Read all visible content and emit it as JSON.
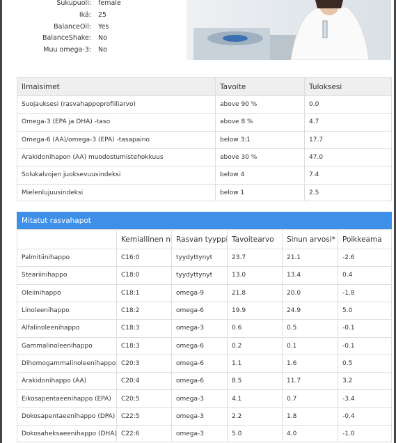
{
  "profile": [
    [
      "Sukupuoli:",
      "female"
    ],
    [
      "Ikä:",
      "25"
    ],
    [
      "BalanceOil:",
      "Yes"
    ],
    [
      "BalanceShake:",
      "No"
    ],
    [
      "Muu omega-3:",
      "No"
    ]
  ],
  "indicators": {
    "header": [
      "Ilmaisimet",
      "Tavoite",
      "Tuloksesi"
    ],
    "rows": [
      [
        "Suojauksesi (rasvahappoprofiiliarvo)",
        "above 90 %",
        "0.0"
      ],
      [
        "Omega-3 (EPA ja DHA) -taso",
        "above 8 %",
        "4.7"
      ],
      [
        "Omega-6 (AA)/omega-3 (EPA) -tasapaino",
        "below 3:1",
        "17.7"
      ],
      [
        "Arakidonihapon (AA) muodostumistehokkuus",
        "above 30 %",
        "47.0"
      ],
      [
        "Solukalvojen juoksevuusindeksi",
        "below 4",
        "7.4"
      ],
      [
        "Mielenlujuusindeksi",
        "below 1",
        "2.5"
      ]
    ]
  },
  "fatty_acids": {
    "title": "Mitatut rasvahapot",
    "header": [
      "",
      "Kemiallinen ni",
      "Rasvan tyyppi",
      "Tavoitearvo",
      "Sinun arvosi*",
      "Poikkeama"
    ],
    "rows": [
      [
        "Palmitiinihappo",
        "C16:0",
        "tyydyttynyt",
        "23.7",
        "21.1",
        "-2.6"
      ],
      [
        "Steariinihappo",
        "C18:0",
        "tyydyttynyt",
        "13.0",
        "13.4",
        "0.4"
      ],
      [
        "Oleiinihappo",
        "C18:1",
        "omega-9",
        "21.8",
        "20.0",
        "-1.8"
      ],
      [
        "Linoleenihappo",
        "C18:2",
        "omega-6",
        "19.9",
        "24.9",
        "5.0"
      ],
      [
        "Alfalinoleenihappo",
        "C18:3",
        "omega-3",
        "0.6",
        "0.5",
        "-0.1"
      ],
      [
        "Gammalinoleenihappo",
        "C18:3",
        "omega-6",
        "0.2",
        "0.1",
        "-0.1"
      ],
      [
        "Dihomogammalinoleenihappo",
        "C20:3",
        "omega-6",
        "1.1",
        "1.6",
        "0.5"
      ],
      [
        "Arakidonihappo (AA)",
        "C20:4",
        "omega-6",
        "8.5",
        "11.7",
        "3.2"
      ],
      [
        "Eikosapentaeenihappo (EPA)",
        "C20:5",
        "omega-3",
        "4.1",
        "0.7",
        "-3.4"
      ],
      [
        "Dokosapentaeenihappo (DPA)",
        "C22:5",
        "omega-3",
        "2.2",
        "1.8",
        "-0.4"
      ],
      [
        "Dokosaheksaeenihappo (DHA)",
        "C22:6",
        "omega-3",
        "5.0",
        "4.0",
        "-1.0"
      ]
    ]
  }
}
